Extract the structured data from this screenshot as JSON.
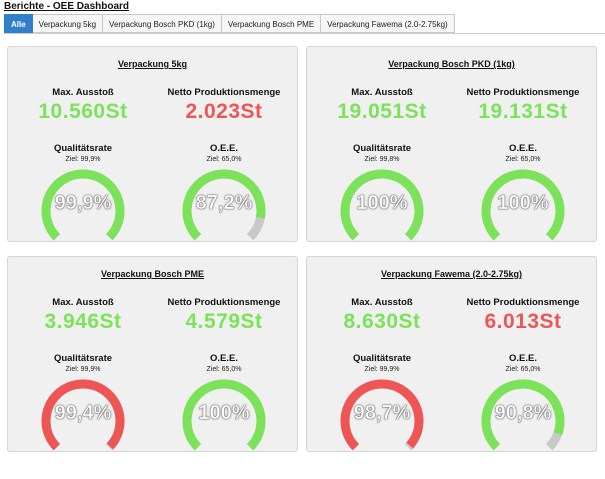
{
  "page_title": "Berichte - OEE Dashboard",
  "tabs": [
    {
      "label": "Alle",
      "active": true
    },
    {
      "label": "Verpackung 5kg",
      "active": false
    },
    {
      "label": "Verpackung Bosch PKD (1kg)",
      "active": false
    },
    {
      "label": "Verpackung Bosch PME",
      "active": false
    },
    {
      "label": "Verpackung Fawema (2.0-2.75kg)",
      "active": false
    }
  ],
  "colors": {
    "green": "#7ce25a",
    "red": "#ee5555",
    "track": "#c8c8c8",
    "tab_active": "#2f7fc9"
  },
  "cards": [
    {
      "title": "Verpackung 5kg",
      "max_label": "Max. Ausstoß",
      "max_value": "10.560St",
      "max_color": "green",
      "netto_label": "Netto Produktionsmenge",
      "netto_value": "2.023St",
      "netto_color": "red",
      "q_label": "Qualitätsrate",
      "q_target": "Ziel: 99,9%",
      "q_value": "99,9%",
      "q_fraction": 0.999,
      "q_color": "green",
      "o_label": "O.E.E.",
      "o_target": "Ziel: 65,0%",
      "o_value": "87,2%",
      "o_fraction": 0.872,
      "o_color": "green"
    },
    {
      "title": "Verpackung Bosch PKD (1kg)",
      "max_label": "Max. Ausstoß",
      "max_value": "19.051St",
      "max_color": "green",
      "netto_label": "Netto Produktionsmenge",
      "netto_value": "19.131St",
      "netto_color": "green",
      "q_label": "Qualitätsrate",
      "q_target": "Ziel: 99,8%",
      "q_value": "100%",
      "q_fraction": 1.0,
      "q_color": "green",
      "o_label": "O.E.E.",
      "o_target": "Ziel: 65,0%",
      "o_value": "100%",
      "o_fraction": 1.0,
      "o_color": "green"
    },
    {
      "title": "Verpackung Bosch PME",
      "max_label": "Max. Ausstoß",
      "max_value": "3.946St",
      "max_color": "green",
      "netto_label": "Netto Produktionsmenge",
      "netto_value": "4.579St",
      "netto_color": "green",
      "q_label": "Qualitätsrate",
      "q_target": "Ziel: 99,9%",
      "q_value": "99,4%",
      "q_fraction": 0.994,
      "q_color": "red",
      "o_label": "O.E.E.",
      "o_target": "Ziel: 65,0%",
      "o_value": "100%",
      "o_fraction": 1.0,
      "o_color": "green"
    },
    {
      "title": "Verpackung Fawema (2.0-2.75kg)",
      "max_label": "Max. Ausstoß",
      "max_value": "8.630St",
      "max_color": "green",
      "netto_label": "Netto Produktionsmenge",
      "netto_value": "6.013St",
      "netto_color": "red",
      "q_label": "Qualitätsrate",
      "q_target": "Ziel: 99,9%",
      "q_value": "98,7%",
      "q_fraction": 0.987,
      "q_color": "red",
      "o_label": "O.E.E.",
      "o_target": "Ziel: 65,0%",
      "o_value": "90,8%",
      "o_fraction": 0.908,
      "o_color": "green"
    }
  ]
}
